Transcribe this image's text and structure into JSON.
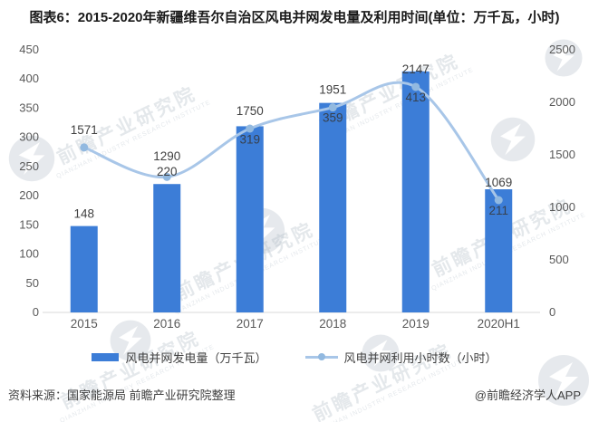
{
  "title": "图表6：2015-2020年新疆维吾尔自治区风电并网发电量及利用时间(单位：万千瓦，小时)",
  "chart_data": {
    "type": "combo",
    "categories": [
      "2015",
      "2016",
      "2017",
      "2018",
      "2019",
      "2020H1"
    ],
    "series": [
      {
        "name": "风电并网发电量（万千瓦）",
        "type": "bar",
        "axis": "left",
        "values": [
          148,
          220,
          319,
          359,
          413,
          211
        ]
      },
      {
        "name": "风电并网利用小时数（小时）",
        "type": "line",
        "axis": "right",
        "values": [
          1571,
          1290,
          1750,
          1951,
          2147,
          1069
        ]
      }
    ],
    "axes": {
      "left": {
        "min": 0,
        "max": 450,
        "step": 50
      },
      "right": {
        "min": 0,
        "max": 2500,
        "step": 500
      }
    },
    "grid": false,
    "legend_position": "bottom",
    "data_labels": true
  },
  "footer": {
    "source": "资料来源：国家能源局 前瞻产业研究院整理",
    "credit": "@前瞻经济学人APP"
  },
  "watermark": {
    "text": "前瞻产业研究院",
    "sub": "QIANZHAN INDUSTRY RESEARCH INSTITUTE"
  },
  "colors": {
    "bar": "#3C7DD7",
    "line": "#A8C6E8",
    "dot": "#92B9E0",
    "value_label": "#404040",
    "value_label_inside": "#37414E",
    "axis_text": "#595959",
    "axis_line": "#D9D9D9",
    "title_text": "#1A1A1A",
    "watermark": "#B9C3CD"
  }
}
